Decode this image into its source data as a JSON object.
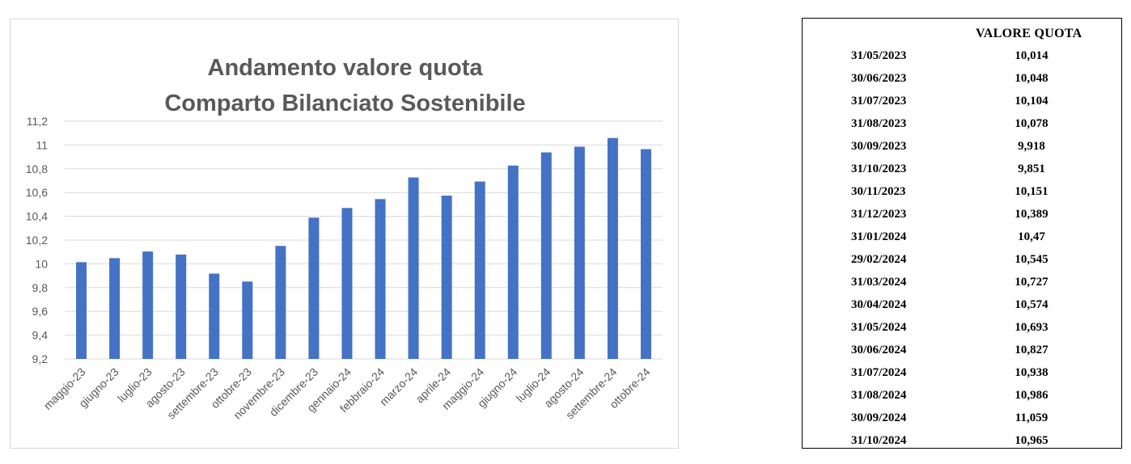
{
  "chart_data": {
    "type": "bar",
    "title_lines": [
      "Andamento valore quota",
      "Comparto Bilanciato Sostenibile"
    ],
    "categories": [
      "maggio-23",
      "giugno-23",
      "luglio-23",
      "agosto-23",
      "settembre-23",
      "ottobre-23",
      "novembre-23",
      "dicembre-23",
      "gennaio-24",
      "febbraio-24",
      "marzo-24",
      "aprile-24",
      "maggio-24",
      "giugno-24",
      "luglio-24",
      "agosto-24",
      "settembre-24",
      "ottobre-24"
    ],
    "values": [
      10.014,
      10.048,
      10.104,
      10.078,
      9.918,
      9.851,
      10.151,
      10.389,
      10.47,
      10.545,
      10.727,
      10.574,
      10.693,
      10.827,
      10.938,
      10.986,
      11.059,
      10.965
    ],
    "ylim": [
      9.2,
      11.2
    ],
    "yticks": [
      9.2,
      9.4,
      9.6,
      9.8,
      10,
      10.2,
      10.4,
      10.6,
      10.8,
      11,
      11.2
    ],
    "ytick_labels": [
      "9,2",
      "9,4",
      "9,6",
      "9,8",
      "10",
      "10,2",
      "10,4",
      "10,6",
      "10,8",
      "11",
      "11,2"
    ],
    "grid": true,
    "bar_color": "#4472c4",
    "xlabel": "",
    "ylabel": ""
  },
  "table": {
    "header": "VALORE QUOTA",
    "rows": [
      {
        "date": "31/05/2023",
        "value": "10,014"
      },
      {
        "date": "30/06/2023",
        "value": "10,048"
      },
      {
        "date": "31/07/2023",
        "value": "10,104"
      },
      {
        "date": "31/08/2023",
        "value": "10,078"
      },
      {
        "date": "30/09/2023",
        "value": "9,918"
      },
      {
        "date": "31/10/2023",
        "value": "9,851"
      },
      {
        "date": "30/11/2023",
        "value": "10,151"
      },
      {
        "date": "31/12/2023",
        "value": "10,389"
      },
      {
        "date": "31/01/2024",
        "value": "10,47"
      },
      {
        "date": "29/02/2024",
        "value": "10,545"
      },
      {
        "date": "31/03/2024",
        "value": "10,727"
      },
      {
        "date": "30/04/2024",
        "value": "10,574"
      },
      {
        "date": "31/05/2024",
        "value": "10,693"
      },
      {
        "date": "30/06/2024",
        "value": "10,827"
      },
      {
        "date": "31/07/2024",
        "value": "10,938"
      },
      {
        "date": "31/08/2024",
        "value": "10,986"
      },
      {
        "date": "30/09/2024",
        "value": "11,059"
      },
      {
        "date": "31/10/2024",
        "value": "10,965"
      }
    ]
  }
}
